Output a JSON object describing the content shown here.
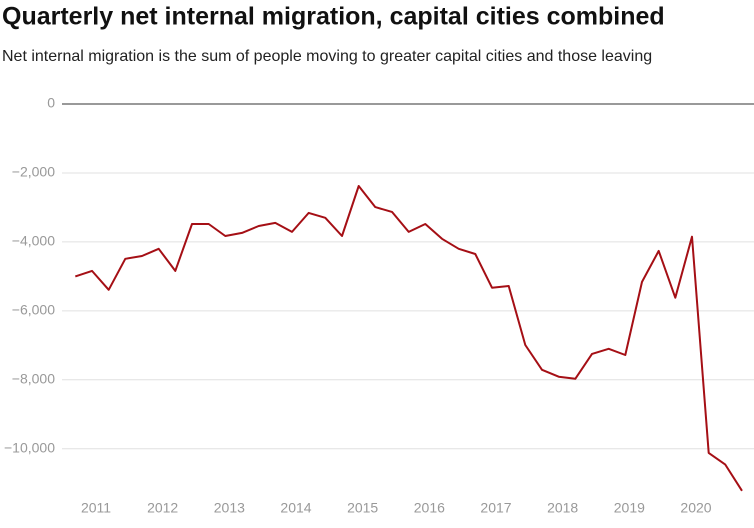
{
  "chart_data": {
    "type": "line",
    "title": "Quarterly net internal migration, capital cities combined",
    "subtitle": "Net internal migration is the sum of people moving to greater capital cities and those leaving",
    "x": [
      2010.75,
      2011,
      2011.25,
      2011.5,
      2011.75,
      2012,
      2012.25,
      2012.5,
      2012.75,
      2013,
      2013.25,
      2013.5,
      2013.75,
      2014,
      2014.25,
      2014.5,
      2014.75,
      2015,
      2015.25,
      2015.5,
      2015.75,
      2016,
      2016.25,
      2016.5,
      2016.75,
      2017,
      2017.25,
      2017.5,
      2017.75,
      2018,
      2018.25,
      2018.5,
      2018.75,
      2019,
      2019.25,
      2019.5,
      2019.75,
      2020,
      2020.25,
      2020.5,
      2020.75
    ],
    "series": [
      {
        "name": "Net internal migration",
        "color": "#a50f15",
        "values": [
          -5000,
          -4840,
          -5390,
          -4490,
          -4410,
          -4200,
          -4840,
          -3480,
          -3480,
          -3830,
          -3740,
          -3540,
          -3450,
          -3710,
          -3160,
          -3300,
          -3830,
          -2380,
          -2990,
          -3130,
          -3710,
          -3480,
          -3910,
          -4200,
          -4350,
          -5330,
          -5280,
          -6990,
          -7710,
          -7910,
          -7970,
          -7250,
          -7100,
          -7280,
          -5160,
          -4260,
          -5620,
          -3850,
          -10120,
          -10460,
          -11220
        ]
      }
    ],
    "xlim": [
      2010.55,
      2020.9
    ],
    "xticks": [
      2011,
      2012,
      2013,
      2014,
      2015,
      2016,
      2017,
      2018,
      2019,
      2020
    ],
    "ylim": [
      -11400,
      0
    ],
    "yticks": [
      {
        "value": 0,
        "label": "0"
      },
      {
        "value": -2000,
        "label": "−2,000"
      },
      {
        "value": -4000,
        "label": "−4,000"
      },
      {
        "value": -6000,
        "label": "−6,000"
      },
      {
        "value": -8000,
        "label": "−8,000"
      },
      {
        "value": -10000,
        "label": "−10,000"
      }
    ],
    "grid": true
  }
}
